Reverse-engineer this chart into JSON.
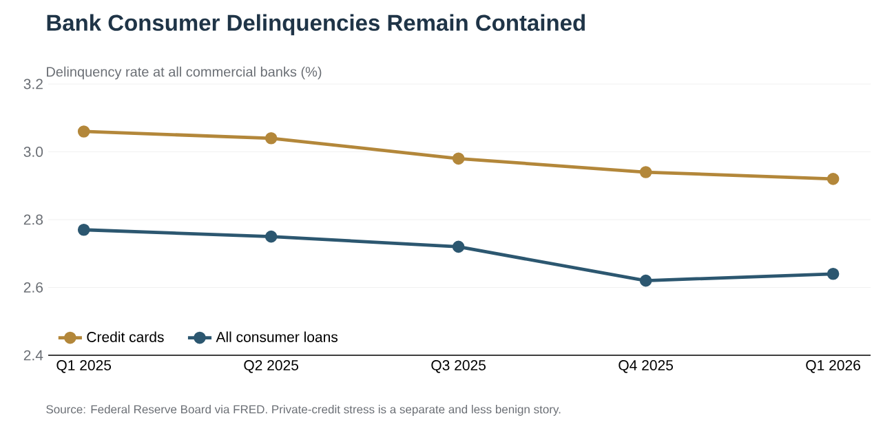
{
  "chart_data": {
    "type": "line",
    "title": "Bank Consumer Delinquencies Remain Contained",
    "subtitle": "Delinquency rate at all commercial banks (%)",
    "categories": [
      "Q1 2025",
      "Q2 2025",
      "Q3 2025",
      "Q4 2025",
      "Q1 2026"
    ],
    "series": [
      {
        "name": "Credit cards",
        "color": "#b3873a",
        "values": [
          3.06,
          3.04,
          2.98,
          2.94,
          2.92
        ]
      },
      {
        "name": "All consumer loans",
        "color": "#2c5770",
        "values": [
          2.77,
          2.75,
          2.72,
          2.62,
          2.64
        ]
      }
    ],
    "ylim": [
      2.4,
      3.2
    ],
    "yticks": [
      {
        "value": 2.4,
        "label": "2.4"
      },
      {
        "value": 2.6,
        "label": "2.6"
      },
      {
        "value": 2.8,
        "label": "2.8"
      },
      {
        "value": 3.0,
        "label": "3.0"
      },
      {
        "value": 3.2,
        "label": "3.2"
      }
    ],
    "grid": "y",
    "legend": "bottom left",
    "marker": "circle",
    "line_style": "solid",
    "annotations": [
      "Source: Federal Reserve Board via FRED. Private-credit stress is a separate and less benign story."
    ]
  }
}
